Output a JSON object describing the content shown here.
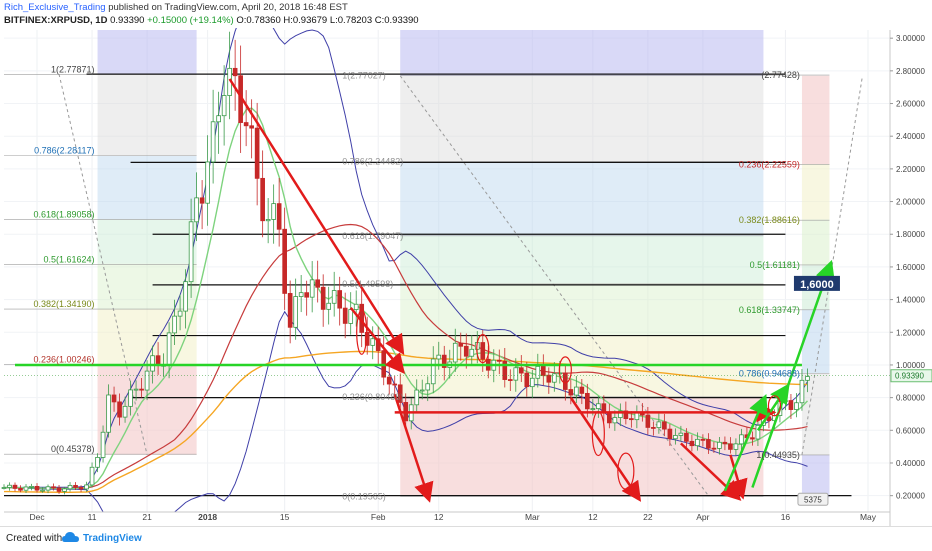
{
  "header": {
    "author": "Rich_Exclusive_Trading",
    "published_text": " published on TradingView.com, April 20, 2018 16:48 EST",
    "symbol": "BITFINEX:XRPUSD, 1D",
    "last": "0.93390",
    "change": "+0.15000 (+19.14%)",
    "ohlc": "O:0.78360 H:0.93679 L:0.78203 C:0.93390"
  },
  "footer": {
    "created_with": "Created with",
    "brand": "TradingView"
  },
  "colors": {
    "up": "#3a9a4a",
    "down": "#c62828",
    "arrow_red": "#e21b1b",
    "arrow_green": "#27d427",
    "band": "#3f3fa8",
    "orange_ma": "#f5a623",
    "green_ma": "#7ed37e",
    "red_ma": "#c73c3c",
    "blue_ma": "#3c3cb4",
    "fib_label_blue": "#1e6fb5",
    "fib_label_green": "#2e9a2e",
    "fib_label_red": "#c62828"
  },
  "chart_data": {
    "type": "candlestick",
    "price_axis": {
      "min": 0.1,
      "max": 3.05,
      "ticks": [
        "3.00000",
        "2.80000",
        "2.60000",
        "2.40000",
        "2.20000",
        "2.00000",
        "1.80000",
        "1.60000",
        "1.40000",
        "1.20000",
        "1.00000",
        "0.80000",
        "0.60000",
        "0.40000",
        "0.20000"
      ]
    },
    "date_axis": {
      "start": "2017-11-25",
      "end": "2018-05-05",
      "labels": [
        {
          "text": "Dec",
          "date": "2017-12-01"
        },
        {
          "text": "11",
          "date": "2017-12-11"
        },
        {
          "text": "21",
          "date": "2017-12-21"
        },
        {
          "text": "2018",
          "date": "2018-01-01"
        },
        {
          "text": "15",
          "date": "2018-01-15"
        },
        {
          "text": "Feb",
          "date": "2018-02-01"
        },
        {
          "text": "12",
          "date": "2018-02-12"
        },
        {
          "text": "Mar",
          "date": "2018-03-01"
        },
        {
          "text": "12",
          "date": "2018-03-12"
        },
        {
          "text": "22",
          "date": "2018-03-22"
        },
        {
          "text": "Apr",
          "date": "2018-04-01"
        },
        {
          "text": "16",
          "date": "2018-04-16"
        },
        {
          "text": "May",
          "date": "2018-05-01"
        }
      ]
    },
    "last_price_label": "0.93390",
    "target_label": "1,6000",
    "close_path": [
      [
        "2017-11-25",
        0.25
      ],
      [
        "2017-12-05",
        0.24
      ],
      [
        "2017-12-10",
        0.26
      ],
      [
        "2017-12-12",
        0.45
      ],
      [
        "2017-12-14",
        0.78
      ],
      [
        "2017-12-16",
        0.72
      ],
      [
        "2017-12-18",
        0.8
      ],
      [
        "2017-12-20",
        0.9
      ],
      [
        "2017-12-22",
        1.0
      ],
      [
        "2017-12-24",
        1.05
      ],
      [
        "2017-12-26",
        1.25
      ],
      [
        "2017-12-28",
        1.55
      ],
      [
        "2017-12-30",
        2.0
      ],
      [
        "2018-01-02",
        2.35
      ],
      [
        "2018-01-04",
        2.8
      ],
      [
        "2018-01-06",
        2.65
      ],
      [
        "2018-01-08",
        2.55
      ],
      [
        "2018-01-10",
        2.1
      ],
      [
        "2018-01-12",
        1.9
      ],
      [
        "2018-01-14",
        1.85
      ],
      [
        "2018-01-16",
        1.2
      ],
      [
        "2018-01-18",
        1.5
      ],
      [
        "2018-01-20",
        1.45
      ],
      [
        "2018-01-22",
        1.42
      ],
      [
        "2018-01-25",
        1.35
      ],
      [
        "2018-01-28",
        1.3
      ],
      [
        "2018-02-01",
        1.05
      ],
      [
        "2018-02-04",
        0.83
      ],
      [
        "2018-02-06",
        0.7
      ],
      [
        "2018-02-08",
        0.8
      ],
      [
        "2018-02-11",
        1.0
      ],
      [
        "2018-02-14",
        1.05
      ],
      [
        "2018-02-17",
        1.12
      ],
      [
        "2018-02-20",
        1.05
      ],
      [
        "2018-02-24",
        0.95
      ],
      [
        "2018-02-28",
        0.92
      ],
      [
        "2018-03-04",
        0.95
      ],
      [
        "2018-03-07",
        0.88
      ],
      [
        "2018-03-10",
        0.8
      ],
      [
        "2018-03-13",
        0.72
      ],
      [
        "2018-03-16",
        0.67
      ],
      [
        "2018-03-19",
        0.7
      ],
      [
        "2018-03-22",
        0.65
      ],
      [
        "2018-03-25",
        0.6
      ],
      [
        "2018-03-28",
        0.55
      ],
      [
        "2018-04-01",
        0.52
      ],
      [
        "2018-04-04",
        0.5
      ],
      [
        "2018-04-07",
        0.52
      ],
      [
        "2018-04-10",
        0.58
      ],
      [
        "2018-04-12",
        0.65
      ],
      [
        "2018-04-14",
        0.72
      ],
      [
        "2018-04-16",
        0.76
      ],
      [
        "2018-04-18",
        0.78
      ],
      [
        "2018-04-20",
        0.93
      ]
    ],
    "fib_retracement_left": {
      "levels": [
        {
          "text": "1(2.77871)",
          "price": 2.7787
        },
        {
          "text": "0.786(2.28117)",
          "price": 2.2812
        },
        {
          "text": "0.618(1.89058)",
          "price": 1.8906
        },
        {
          "text": "0.5(1.61624)",
          "price": 1.6162
        },
        {
          "text": "0.382(1.34190)",
          "price": 1.3419
        },
        {
          "text": "0.236(1.00246)",
          "price": 1.0025
        },
        {
          "text": "0(0.45378)",
          "price": 0.4538
        }
      ]
    },
    "fib_retracement_right": {
      "levels": [
        {
          "text": "(2.77428)",
          "price": 2.7743
        },
        {
          "text": "0.236(2.22559)",
          "price": 2.2256
        },
        {
          "text": "0.382(1.88616)",
          "price": 1.8862
        },
        {
          "text": "0.5(1.61181)",
          "price": 1.6118
        },
        {
          "text": "0.618(1.33747)",
          "price": 1.3375
        },
        {
          "text": "0.786(0.94688)",
          "price": 0.9469
        },
        {
          "text": "1(0.44935)",
          "price": 0.4494
        }
      ]
    },
    "fib_retracement_mid": {
      "levels": [
        {
          "text": "1(2.77027)",
          "price": 2.7703
        },
        {
          "text": "0.786(2.24482)",
          "price": 2.2448
        },
        {
          "text": "0.618(1.79047)",
          "price": 1.7905
        },
        {
          "text": "0.5(1.49598)",
          "price": 1.496
        },
        {
          "text": "0.236(0.80488)",
          "price": 0.8049
        },
        {
          "text": "0(0.19565)",
          "price": 0.1957
        }
      ]
    },
    "horizontal_levels": [
      2.78,
      2.24,
      1.8,
      1.49,
      1.18,
      0.8,
      0.2
    ],
    "green_horizontal": 1.0,
    "red_horizontal": 0.71,
    "badge": "5375"
  }
}
